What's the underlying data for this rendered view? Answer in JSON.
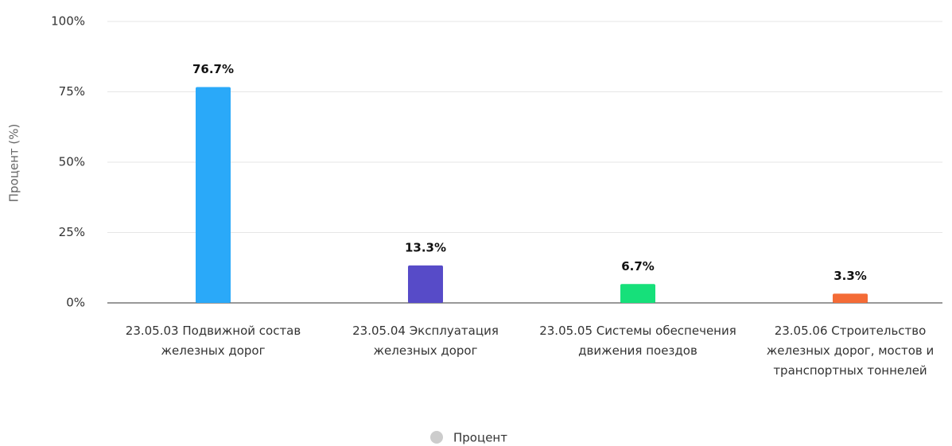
{
  "chart_data": {
    "type": "bar",
    "y_axis_label": "Процент (%)",
    "categories": [
      "23.05.03 Подвижной состав железных дорог",
      "23.05.04 Эксплуатация железных дорог",
      "23.05.05 Системы обеспечения движения поездов",
      "23.05.06 Строительство железных дорог, мостов и транспортных тоннелей"
    ],
    "series": [
      {
        "name": "Процент",
        "color": "#cccccc",
        "colors": [
          "#2aa9f9",
          "#574bc8",
          "#16e07a",
          "#f46b36"
        ],
        "values": [
          76.7,
          13.3,
          6.7,
          3.3
        ],
        "value_labels": [
          "76.7%",
          "13.3%",
          "6.7%",
          "3.3%"
        ]
      }
    ],
    "ylim": [
      0,
      100
    ],
    "yticks": [
      {
        "value": 0,
        "label": "0%"
      },
      {
        "value": 25,
        "label": "25%"
      },
      {
        "value": 50,
        "label": "50%"
      },
      {
        "value": 75,
        "label": "75%"
      },
      {
        "value": 100,
        "label": "100%"
      }
    ],
    "grid": true,
    "legend": "bottom"
  }
}
